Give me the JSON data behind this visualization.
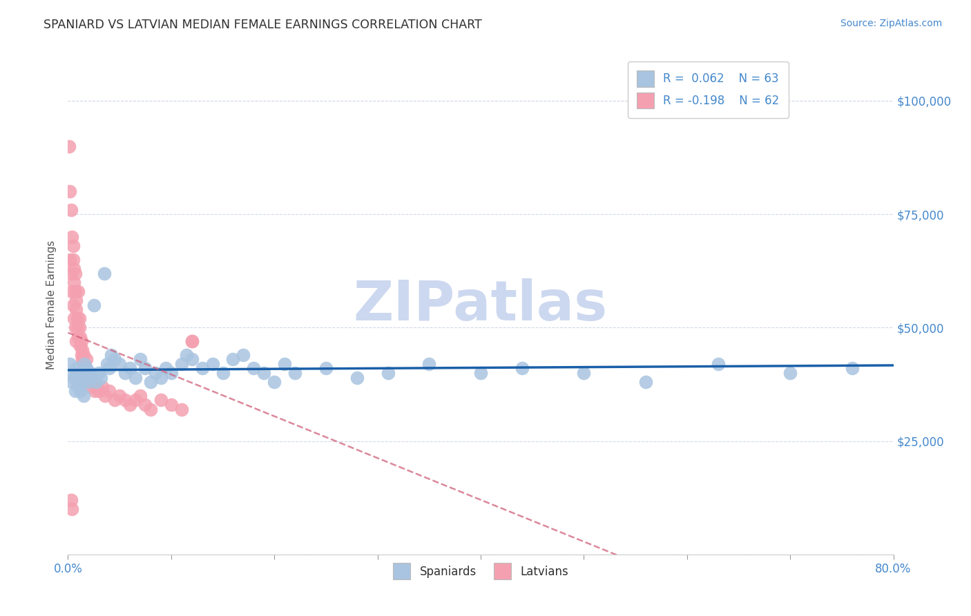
{
  "title": "SPANIARD VS LATVIAN MEDIAN FEMALE EARNINGS CORRELATION CHART",
  "source": "Source: ZipAtlas.com",
  "ylabel": "Median Female Earnings",
  "xlim": [
    0.0,
    0.8
  ],
  "ylim": [
    0,
    110000
  ],
  "yticks": [
    0,
    25000,
    50000,
    75000,
    100000
  ],
  "ytick_labels": [
    "",
    "$25,000",
    "$50,000",
    "$75,000",
    "$100,000"
  ],
  "xtick_labels": [
    "0.0%",
    "",
    "",
    "",
    "",
    "",
    "",
    "",
    "80.0%"
  ],
  "xticks": [
    0.0,
    0.1,
    0.2,
    0.3,
    0.4,
    0.5,
    0.6,
    0.7,
    0.8
  ],
  "spaniard_color": "#a8c4e0",
  "latvian_color": "#f4a0b0",
  "spaniard_line_color": "#1a5fa8",
  "latvian_line_color": "#d0607a",
  "r_spaniard": 0.062,
  "n_spaniard": 63,
  "r_latvian": -0.198,
  "n_latvian": 62,
  "watermark": "ZIPatlas",
  "watermark_color": "#ccd8ef",
  "title_color": "#303030",
  "axis_label_color": "#555555",
  "tick_color": "#4488cc",
  "grid_color": "#d0d8e8",
  "spaniards_x": [
    0.002,
    0.004,
    0.005,
    0.006,
    0.007,
    0.008,
    0.009,
    0.01,
    0.011,
    0.012,
    0.013,
    0.014,
    0.015,
    0.016,
    0.017,
    0.018,
    0.019,
    0.02,
    0.022,
    0.025,
    0.027,
    0.03,
    0.032,
    0.035,
    0.038,
    0.04,
    0.042,
    0.045,
    0.05,
    0.055,
    0.06,
    0.065,
    0.07,
    0.075,
    0.08,
    0.085,
    0.09,
    0.095,
    0.1,
    0.11,
    0.115,
    0.12,
    0.13,
    0.14,
    0.15,
    0.16,
    0.17,
    0.18,
    0.19,
    0.2,
    0.21,
    0.22,
    0.25,
    0.28,
    0.31,
    0.35,
    0.4,
    0.44,
    0.5,
    0.56,
    0.63,
    0.7,
    0.76
  ],
  "spaniards_y": [
    42000,
    38000,
    40000,
    39000,
    36000,
    41000,
    38000,
    37000,
    40000,
    36000,
    39000,
    38000,
    35000,
    42000,
    40000,
    41000,
    39000,
    38000,
    40000,
    55000,
    38000,
    40000,
    39000,
    62000,
    42000,
    41000,
    44000,
    43000,
    42000,
    40000,
    41000,
    39000,
    43000,
    41000,
    38000,
    40000,
    39000,
    41000,
    40000,
    42000,
    44000,
    43000,
    41000,
    42000,
    40000,
    43000,
    44000,
    41000,
    40000,
    38000,
    42000,
    40000,
    41000,
    39000,
    40000,
    42000,
    40000,
    41000,
    40000,
    38000,
    42000,
    40000,
    41000
  ],
  "latvians_x": [
    0.001,
    0.002,
    0.003,
    0.004,
    0.005,
    0.005,
    0.006,
    0.006,
    0.007,
    0.007,
    0.008,
    0.008,
    0.009,
    0.009,
    0.01,
    0.01,
    0.011,
    0.011,
    0.012,
    0.012,
    0.013,
    0.013,
    0.014,
    0.014,
    0.015,
    0.015,
    0.016,
    0.017,
    0.018,
    0.019,
    0.02,
    0.021,
    0.022,
    0.024,
    0.026,
    0.028,
    0.03,
    0.033,
    0.036,
    0.04,
    0.045,
    0.05,
    0.055,
    0.06,
    0.065,
    0.07,
    0.075,
    0.08,
    0.09,
    0.1,
    0.11,
    0.12,
    0.002,
    0.003,
    0.004,
    0.005,
    0.006,
    0.007,
    0.008,
    0.003,
    0.004,
    0.12
  ],
  "latvians_y": [
    90000,
    80000,
    76000,
    70000,
    68000,
    65000,
    63000,
    60000,
    62000,
    58000,
    56000,
    54000,
    52000,
    50000,
    58000,
    48000,
    52000,
    50000,
    48000,
    46000,
    44000,
    47000,
    43000,
    45000,
    42000,
    44000,
    40000,
    41000,
    43000,
    39000,
    38000,
    40000,
    37000,
    38000,
    36000,
    37000,
    36000,
    37000,
    35000,
    36000,
    34000,
    35000,
    34000,
    33000,
    34000,
    35000,
    33000,
    32000,
    34000,
    33000,
    32000,
    47000,
    65000,
    62000,
    58000,
    55000,
    52000,
    50000,
    47000,
    12000,
    10000,
    47000
  ]
}
